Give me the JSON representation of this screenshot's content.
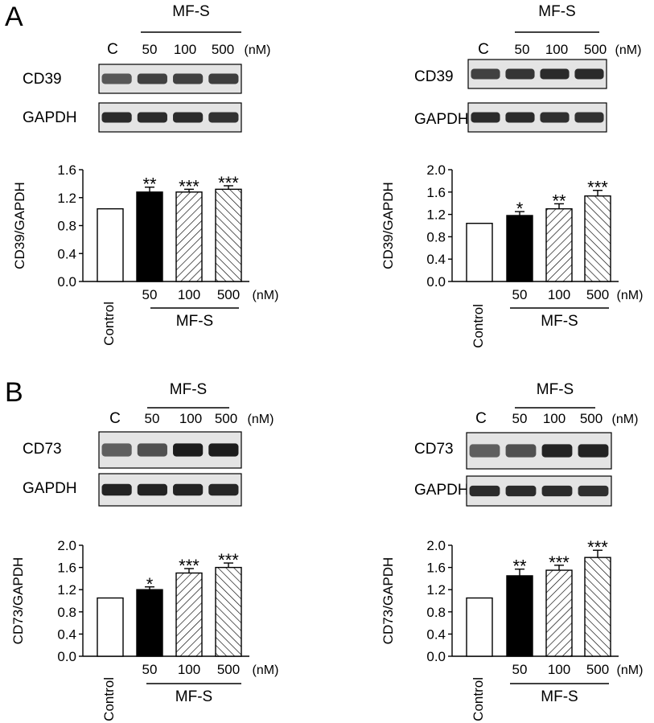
{
  "panels": [
    {
      "letter": "A",
      "columns": [
        {
          "blot": {
            "group_label": "MF-S",
            "lanes": [
              "C",
              "50",
              "100",
              "500"
            ],
            "unit": "(nM)",
            "rows": [
              {
                "label": "CD39",
                "intensity": [
                  0.55,
                  0.7,
                  0.7,
                  0.72
                ]
              },
              {
                "label": "GAPDH",
                "intensity": [
                  0.85,
                  0.85,
                  0.85,
                  0.8
                ]
              }
            ]
          },
          "chart": {
            "ylabel": "CD39/GAPDH",
            "yticks": [
              "0.0",
              "0.4",
              "0.8",
              "1.2",
              "1.6"
            ],
            "control_label": "Control",
            "group_label": "MF-S",
            "unit": "(nM)"
          }
        },
        {
          "blot": {
            "group_label": "MF-S",
            "lanes": [
              "C",
              "50",
              "100",
              "500"
            ],
            "unit": "(nM)",
            "rows": [
              {
                "label": "CD39",
                "intensity": [
                  0.7,
                  0.78,
                  0.85,
                  0.85
                ]
              },
              {
                "label": "GAPDH",
                "intensity": [
                  0.85,
                  0.85,
                  0.82,
                  0.8
                ]
              }
            ]
          },
          "chart": {
            "ylabel": "CD39/GAPDH",
            "yticks": [
              "0.0",
              "0.4",
              "0.8",
              "1.2",
              "1.6",
              "2.0"
            ],
            "control_label": "Control",
            "group_label": "MF-S",
            "unit": "(nM)"
          }
        }
      ]
    },
    {
      "letter": "B",
      "columns": [
        {
          "blot": {
            "group_label": "MF-S",
            "lanes": [
              "C",
              "50",
              "100",
              "500"
            ],
            "unit": "(nM)",
            "rows": [
              {
                "label": "CD73",
                "intensity": [
                  0.5,
                  0.6,
                  0.95,
                  0.95
                ]
              },
              {
                "label": "GAPDH",
                "intensity": [
                  0.9,
                  0.9,
                  0.9,
                  0.88
                ]
              }
            ]
          },
          "chart": {
            "ylabel": "CD73/GAPDH",
            "yticks": [
              "0.0",
              "0.4",
              "0.8",
              "1.2",
              "1.6",
              "2.0"
            ],
            "control_label": "Control",
            "group_label": "MF-S",
            "unit": "(nM)"
          }
        },
        {
          "blot": {
            "group_label": "MF-S",
            "lanes": [
              "C",
              "50",
              "100",
              "500"
            ],
            "unit": "(nM)",
            "rows": [
              {
                "label": "CD73",
                "intensity": [
                  0.5,
                  0.6,
                  0.9,
                  0.9
                ]
              },
              {
                "label": "GAPDH",
                "intensity": [
                  0.85,
                  0.85,
                  0.85,
                  0.82
                ]
              }
            ]
          },
          "chart": {
            "ylabel": "CD73/GAPDH",
            "yticks": [
              "0.0",
              "0.4",
              "0.8",
              "1.2",
              "1.6",
              "2.0"
            ],
            "control_label": "Control",
            "group_label": "MF-S",
            "unit": "(nM)"
          }
        }
      ]
    }
  ],
  "chart_data": [
    {
      "type": "bar",
      "panel": "A",
      "ylabel": "CD39/GAPDH",
      "categories": [
        "Control",
        "50",
        "100",
        "500"
      ],
      "values": [
        1.04,
        1.28,
        1.28,
        1.32
      ],
      "errors": [
        0.0,
        0.07,
        0.04,
        0.05
      ],
      "significance": [
        "",
        "**",
        "***",
        "***"
      ],
      "fills": [
        "open",
        "solid",
        "forward-hatch",
        "back-hatch"
      ],
      "ylim": [
        0,
        1.6
      ],
      "group_label": "MF-S",
      "unit": "(nM)"
    },
    {
      "type": "bar",
      "panel": "A",
      "ylabel": "CD39/GAPDH",
      "categories": [
        "Control",
        "50",
        "100",
        "500"
      ],
      "values": [
        1.04,
        1.18,
        1.3,
        1.53
      ],
      "errors": [
        0.0,
        0.07,
        0.09,
        0.1
      ],
      "significance": [
        "",
        "*",
        "**",
        "***"
      ],
      "fills": [
        "open",
        "solid",
        "forward-hatch",
        "back-hatch"
      ],
      "ylim": [
        0,
        2.0
      ],
      "group_label": "MF-S",
      "unit": "(nM)"
    },
    {
      "type": "bar",
      "panel": "B",
      "ylabel": "CD73/GAPDH",
      "categories": [
        "Control",
        "50",
        "100",
        "500"
      ],
      "values": [
        1.05,
        1.2,
        1.5,
        1.6
      ],
      "errors": [
        0.0,
        0.05,
        0.08,
        0.08
      ],
      "significance": [
        "",
        "*",
        "***",
        "***"
      ],
      "fills": [
        "open",
        "solid",
        "forward-hatch",
        "back-hatch"
      ],
      "ylim": [
        0,
        2.0
      ],
      "group_label": "MF-S",
      "unit": "(nM)"
    },
    {
      "type": "bar",
      "panel": "B",
      "ylabel": "CD73/GAPDH",
      "categories": [
        "Control",
        "50",
        "100",
        "500"
      ],
      "values": [
        1.05,
        1.45,
        1.55,
        1.78
      ],
      "errors": [
        0.0,
        0.12,
        0.09,
        0.13
      ],
      "significance": [
        "",
        "**",
        "***",
        "***"
      ],
      "fills": [
        "open",
        "solid",
        "forward-hatch",
        "back-hatch"
      ],
      "ylim": [
        0,
        2.0
      ],
      "group_label": "MF-S",
      "unit": "(nM)"
    }
  ]
}
